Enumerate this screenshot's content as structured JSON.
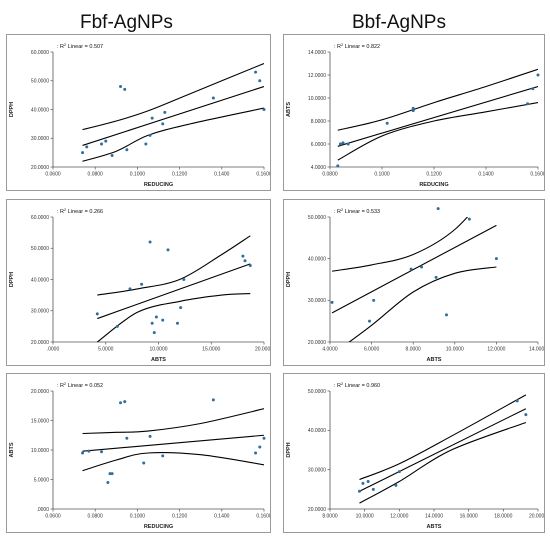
{
  "titles": {
    "left": "Fbf-AgNPs",
    "right": "Bbf-AgNPs"
  },
  "colors": {
    "point": "#2e6f9e",
    "line": "#000000",
    "axis": "#555555"
  },
  "chart_data": [
    {
      "id": "p1",
      "type": "scatter",
      "r2_prefix": "R",
      "r2_sup": "2",
      "r2_text": "Linear = 0.507",
      "xlabel": "REDUCING",
      "ylabel": "DPPH",
      "xlim": [
        0.06,
        0.16
      ],
      "ylim": [
        20,
        60
      ],
      "xticks": [
        0.06,
        0.08,
        0.1,
        0.12,
        0.14,
        0.16
      ],
      "xtick_labels": [
        "0.0600",
        "0.0800",
        "0.1000",
        "0.1200",
        "0.1400",
        "0.1600"
      ],
      "yticks": [
        20,
        30,
        40,
        50,
        60
      ],
      "ytick_labels": [
        "20.0000",
        "30.0000",
        "40.0000",
        "50.0000",
        "60.0000"
      ],
      "points": [
        [
          0.074,
          25
        ],
        [
          0.076,
          27
        ],
        [
          0.083,
          28
        ],
        [
          0.085,
          29
        ],
        [
          0.088,
          24
        ],
        [
          0.092,
          48
        ],
        [
          0.094,
          47
        ],
        [
          0.095,
          26
        ],
        [
          0.104,
          28
        ],
        [
          0.106,
          31
        ],
        [
          0.107,
          37
        ],
        [
          0.112,
          35
        ],
        [
          0.113,
          39
        ],
        [
          0.136,
          44
        ],
        [
          0.156,
          53
        ],
        [
          0.158,
          50
        ],
        [
          0.16,
          40
        ]
      ],
      "fit": [
        [
          0.074,
          27.5
        ],
        [
          0.16,
          48
        ]
      ],
      "ci_upper": [
        [
          0.074,
          33
        ],
        [
          0.09,
          36
        ],
        [
          0.105,
          39.5
        ],
        [
          0.125,
          45.5
        ],
        [
          0.16,
          56
        ]
      ],
      "ci_lower": [
        [
          0.074,
          22
        ],
        [
          0.09,
          25.5
        ],
        [
          0.105,
          31
        ],
        [
          0.125,
          35
        ],
        [
          0.16,
          40.5
        ]
      ]
    },
    {
      "id": "p2",
      "type": "scatter",
      "r2_prefix": "R",
      "r2_sup": "2",
      "r2_text": "Linear = 0.822",
      "xlabel": "REDUCING",
      "ylabel": "ABTS",
      "xlim": [
        0.08,
        0.16
      ],
      "ylim": [
        4,
        14
      ],
      "xticks": [
        0.08,
        0.1,
        0.12,
        0.14,
        0.16
      ],
      "xtick_labels": [
        "0.0800",
        "0.1000",
        "0.1200",
        "0.1400",
        "0.1600"
      ],
      "yticks": [
        4,
        6,
        8,
        10,
        12,
        14
      ],
      "ytick_labels": [
        "4.0000",
        "6.0000",
        "8.0000",
        "10.0000",
        "12.0000",
        "14.0000"
      ],
      "points": [
        [
          0.083,
          4.1
        ],
        [
          0.084,
          6
        ],
        [
          0.085,
          6.1
        ],
        [
          0.087,
          6
        ],
        [
          0.102,
          7.8
        ],
        [
          0.112,
          8.9
        ],
        [
          0.112,
          9.1
        ],
        [
          0.156,
          9.5
        ],
        [
          0.158,
          10.8
        ],
        [
          0.16,
          12
        ]
      ],
      "fit": [
        [
          0.083,
          5.8
        ],
        [
          0.16,
          11
        ]
      ],
      "ci_upper": [
        [
          0.083,
          7.2
        ],
        [
          0.1,
          8.1
        ],
        [
          0.12,
          9.6
        ],
        [
          0.14,
          11
        ],
        [
          0.16,
          12.5
        ]
      ],
      "ci_lower": [
        [
          0.083,
          4.6
        ],
        [
          0.1,
          6.7
        ],
        [
          0.12,
          8
        ],
        [
          0.14,
          8.8
        ],
        [
          0.16,
          9.6
        ]
      ]
    },
    {
      "id": "p3",
      "type": "scatter",
      "r2_prefix": "R",
      "r2_sup": "2",
      "r2_text": "Linear = 0.266",
      "xlabel": "ABTS",
      "ylabel": "DPPH",
      "xlim": [
        0,
        20
      ],
      "ylim": [
        20,
        60
      ],
      "xticks": [
        0,
        5,
        10,
        15,
        20
      ],
      "xtick_labels": [
        ".0000",
        "5.0000",
        "10.0000",
        "15.0000",
        "20.0000"
      ],
      "yticks": [
        20,
        30,
        40,
        50,
        60
      ],
      "ytick_labels": [
        "20.0000",
        "30.0000",
        "40.0000",
        "50.0000",
        "60.0000"
      ],
      "points": [
        [
          4.2,
          29
        ],
        [
          6.1,
          25
        ],
        [
          7.3,
          37
        ],
        [
          8.4,
          38.5
        ],
        [
          9.2,
          52
        ],
        [
          9.4,
          26
        ],
        [
          9.6,
          23
        ],
        [
          9.8,
          28
        ],
        [
          10.4,
          27
        ],
        [
          10.9,
          49.5
        ],
        [
          11.8,
          26
        ],
        [
          12.1,
          31
        ],
        [
          12.4,
          40
        ],
        [
          18,
          47.5
        ],
        [
          18.2,
          46
        ],
        [
          18.7,
          44.5
        ]
      ],
      "fit": [
        [
          4.2,
          27.5
        ],
        [
          18.7,
          45
        ]
      ],
      "ci_upper": [
        [
          4.2,
          35
        ],
        [
          8,
          37
        ],
        [
          12,
          40
        ],
        [
          16,
          48
        ],
        [
          18.7,
          54
        ]
      ],
      "ci_lower": [
        [
          4.2,
          20
        ],
        [
          8,
          29.5
        ],
        [
          12,
          33
        ],
        [
          16,
          35
        ],
        [
          18.7,
          35.5
        ]
      ]
    },
    {
      "id": "p4",
      "type": "scatter",
      "r2_prefix": "R",
      "r2_sup": "2",
      "r2_text": "Linear = 0.533",
      "xlabel": "ABTS",
      "ylabel": "DPPH",
      "xlim": [
        4,
        14
      ],
      "ylim": [
        20,
        50
      ],
      "xticks": [
        4,
        6,
        8,
        10,
        12,
        14
      ],
      "xtick_labels": [
        "4.0000",
        "6.0000",
        "8.0000",
        "10.0000",
        "12.0000",
        "14.0000"
      ],
      "yticks": [
        20,
        30,
        40,
        50
      ],
      "ytick_labels": [
        "20.0000",
        "30.0000",
        "40.0000",
        "50.0000"
      ],
      "points": [
        [
          4.1,
          29.5
        ],
        [
          5.9,
          25
        ],
        [
          6.1,
          30
        ],
        [
          7.9,
          37.5
        ],
        [
          8.4,
          38
        ],
        [
          9.1,
          35.5
        ],
        [
          9.2,
          52
        ],
        [
          9.6,
          26.5
        ],
        [
          10.7,
          49.5
        ],
        [
          12,
          40
        ]
      ],
      "fit": [
        [
          4.1,
          27
        ],
        [
          12,
          48
        ]
      ],
      "ci_upper": [
        [
          4.1,
          37
        ],
        [
          6,
          38.5
        ],
        [
          8,
          41
        ],
        [
          10,
          47
        ],
        [
          12,
          58
        ]
      ],
      "ci_lower": [
        [
          4.1,
          17
        ],
        [
          6,
          24
        ],
        [
          8,
          32
        ],
        [
          10,
          36.5
        ],
        [
          12,
          38
        ]
      ]
    },
    {
      "id": "p5",
      "type": "scatter",
      "r2_prefix": "R",
      "r2_sup": "2",
      "r2_text": "Linear = 0.052",
      "xlabel": "REDUCING",
      "ylabel": "ABTS",
      "xlim": [
        0.06,
        0.16
      ],
      "ylim": [
        0,
        20
      ],
      "xticks": [
        0.06,
        0.08,
        0.1,
        0.12,
        0.14,
        0.16
      ],
      "xtick_labels": [
        "0.0600",
        "0.0800",
        "0.1000",
        "0.1200",
        "0.1400",
        "0.1600"
      ],
      "yticks": [
        0,
        5,
        10,
        15,
        20
      ],
      "ytick_labels": [
        ".0000",
        "5.0000",
        "10.0000",
        "15.0000",
        "20.0000"
      ],
      "points": [
        [
          0.074,
          9.5
        ],
        [
          0.077,
          9.8
        ],
        [
          0.083,
          9.7
        ],
        [
          0.086,
          4.5
        ],
        [
          0.087,
          6
        ],
        [
          0.088,
          6
        ],
        [
          0.092,
          18
        ],
        [
          0.094,
          18.2
        ],
        [
          0.095,
          12
        ],
        [
          0.103,
          7.8
        ],
        [
          0.106,
          12.3
        ],
        [
          0.112,
          9
        ],
        [
          0.136,
          18.5
        ],
        [
          0.156,
          9.5
        ],
        [
          0.158,
          10.5
        ],
        [
          0.16,
          12
        ]
      ],
      "fit": [
        [
          0.074,
          9.8
        ],
        [
          0.16,
          12.5
        ]
      ],
      "ci_upper": [
        [
          0.074,
          12.8
        ],
        [
          0.09,
          13
        ],
        [
          0.105,
          13.2
        ],
        [
          0.13,
          14.5
        ],
        [
          0.16,
          17
        ]
      ],
      "ci_lower": [
        [
          0.074,
          6.5
        ],
        [
          0.09,
          8.3
        ],
        [
          0.105,
          9.5
        ],
        [
          0.13,
          9.2
        ],
        [
          0.16,
          7.5
        ]
      ]
    },
    {
      "id": "p6",
      "type": "scatter",
      "r2_prefix": "R",
      "r2_sup": "2",
      "r2_text": "Linear = 0.960",
      "xlabel": "ABTS",
      "ylabel": "DPPH",
      "xlim": [
        8,
        20
      ],
      "ylim": [
        20,
        50
      ],
      "xticks": [
        8,
        10,
        12,
        14,
        16,
        18,
        20
      ],
      "xtick_labels": [
        "8.0000",
        "10.0000",
        "12.0000",
        "14.0000",
        "16.0000",
        "18.0000",
        "20.0000"
      ],
      "yticks": [
        20,
        30,
        40,
        50
      ],
      "ytick_labels": [
        "20.0000",
        "30.0000",
        "40.0000",
        "50.0000"
      ],
      "points": [
        [
          9.7,
          24.5
        ],
        [
          9.9,
          26.5
        ],
        [
          10.2,
          27
        ],
        [
          10.5,
          25
        ],
        [
          11.8,
          26
        ],
        [
          12,
          29.5
        ],
        [
          18.8,
          47.5
        ],
        [
          19.3,
          44
        ]
      ],
      "fit": [
        [
          9.7,
          24.5
        ],
        [
          19.3,
          45.5
        ]
      ],
      "ci_upper": [
        [
          9.7,
          27.5
        ],
        [
          12,
          31.5
        ],
        [
          15,
          38.5
        ],
        [
          19.3,
          49
        ]
      ],
      "ci_lower": [
        [
          9.7,
          21.5
        ],
        [
          12,
          27
        ],
        [
          15,
          35
        ],
        [
          19.3,
          42
        ]
      ]
    }
  ]
}
